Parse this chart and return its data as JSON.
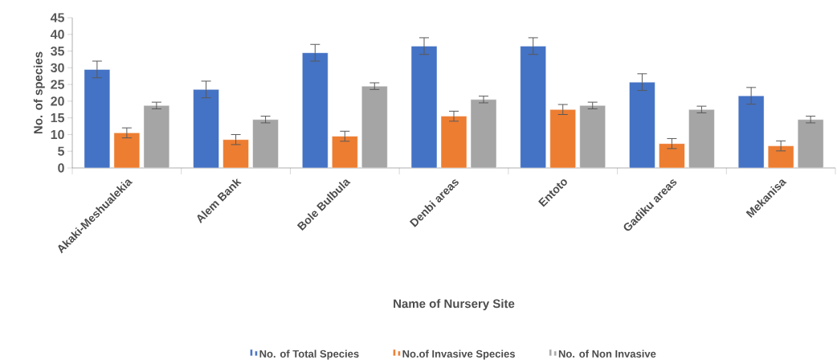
{
  "chart_data": {
    "type": "bar",
    "xlabel": "Name of Nursery Site",
    "ylabel": "No. of species",
    "categories": [
      "Akaki-Meshualekia",
      "Alem Bank",
      "Bole Bulbula",
      "Denbi areas",
      "Entoto",
      "Gadiku areas",
      "Mekanisa"
    ],
    "series": [
      {
        "name": "No. of Total Species",
        "color": "#4472c4",
        "values": [
          29.5,
          23.5,
          34.5,
          36.5,
          36.5,
          25.7,
          21.6
        ],
        "errors": [
          2.5,
          2.5,
          2.5,
          2.5,
          2.5,
          2.5,
          2.5
        ]
      },
      {
        "name": "No.of Invasive Species",
        "color": "#ed7d31",
        "values": [
          10.5,
          8.5,
          9.5,
          15.5,
          17.5,
          7.3,
          6.6
        ],
        "errors": [
          1.5,
          1.5,
          1.5,
          1.5,
          1.5,
          1.5,
          1.5
        ]
      },
      {
        "name": "No. of Non Invasive",
        "color": "#a5a5a5",
        "values": [
          18.7,
          14.5,
          24.5,
          20.5,
          18.7,
          17.5,
          14.5
        ],
        "errors": [
          1,
          1,
          1,
          1,
          1,
          1,
          1
        ]
      }
    ],
    "ylim": [
      0,
      45
    ],
    "yticks": [
      0,
      5,
      10,
      15,
      20,
      25,
      30,
      35,
      40,
      45
    ],
    "grid": false,
    "legend": "bottom"
  }
}
